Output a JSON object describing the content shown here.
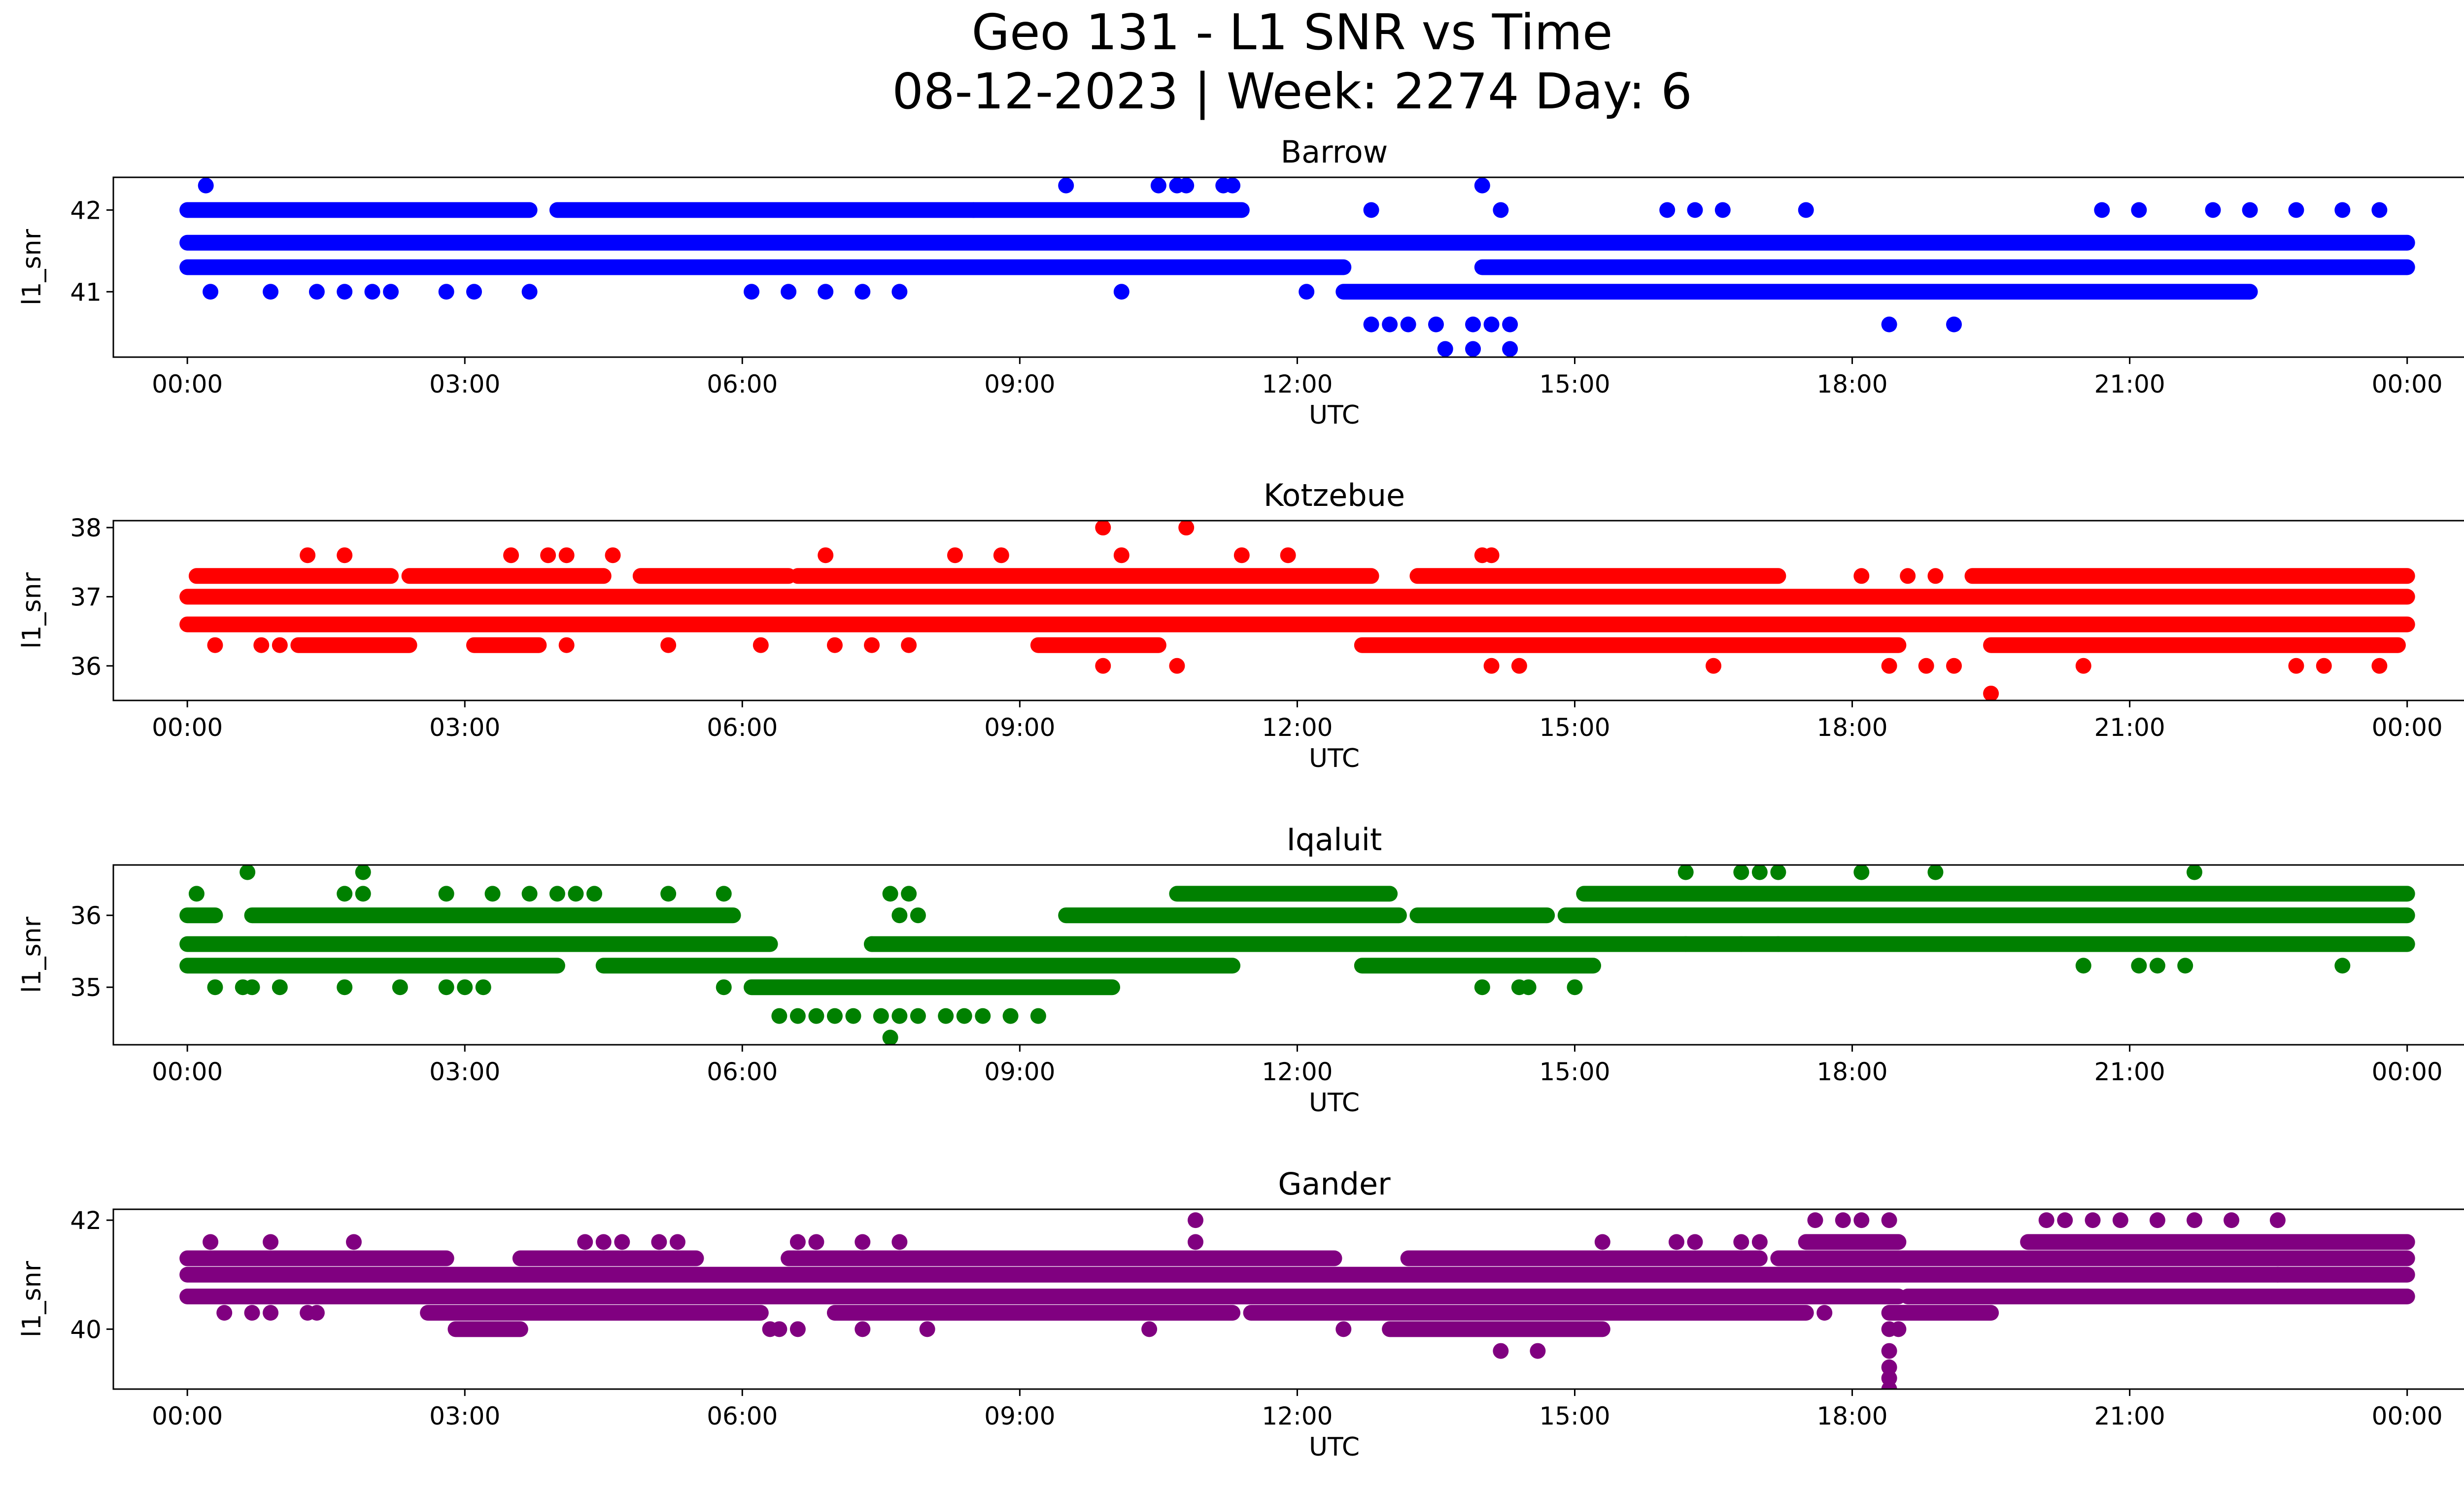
{
  "figure": {
    "title_line1": "Geo 131 - L1 SNR vs Time",
    "title_line2": "08-12-2023 | Week: 2274 Day: 6"
  },
  "chart_data": [
    {
      "type": "scatter",
      "title": "Barrow",
      "xlabel": "UTC",
      "ylabel": "l1_snr",
      "color": "#0000ff",
      "xlim": [
        -0.8,
        25.6
      ],
      "ylim": [
        40.2,
        42.4
      ],
      "xticks": [
        0,
        3,
        6,
        9,
        12,
        15,
        18,
        21,
        24
      ],
      "xtick_labels": [
        "00:00",
        "03:00",
        "06:00",
        "09:00",
        "12:00",
        "15:00",
        "18:00",
        "21:00",
        "00:00"
      ],
      "yticks": [
        41,
        42
      ],
      "ytick_labels": [
        "41",
        "42"
      ],
      "grid": false,
      "bands": [
        {
          "y": 41.6,
          "segments": [
            [
              0,
              24
            ]
          ]
        },
        {
          "y": 41.3,
          "segments": [
            [
              0,
              11.5
            ],
            [
              11.5,
              12.5
            ],
            [
              14.0,
              24
            ]
          ]
        },
        {
          "y": 42.0,
          "segments": [
            [
              0,
              3.7
            ],
            [
              4.0,
              8.5
            ],
            [
              8.5,
              11.4
            ]
          ]
        },
        {
          "y": 41.0,
          "segments": [
            [
              12.5,
              22.3
            ]
          ]
        }
      ],
      "points": [
        [
          0.2,
          42.3
        ],
        [
          9.5,
          42.3
        ],
        [
          10.5,
          42.3
        ],
        [
          10.7,
          42.3
        ],
        [
          10.8,
          42.3
        ],
        [
          11.2,
          42.3
        ],
        [
          11.3,
          42.3
        ],
        [
          14.0,
          42.3
        ],
        [
          0.25,
          41.0
        ],
        [
          0.9,
          41.0
        ],
        [
          1.4,
          41.0
        ],
        [
          1.7,
          41.0
        ],
        [
          2.0,
          41.0
        ],
        [
          2.2,
          41.0
        ],
        [
          2.8,
          41.0
        ],
        [
          3.1,
          41.0
        ],
        [
          3.7,
          41.0
        ],
        [
          6.1,
          41.0
        ],
        [
          6.5,
          41.0
        ],
        [
          6.9,
          41.0
        ],
        [
          7.3,
          41.0
        ],
        [
          7.7,
          41.0
        ],
        [
          10.1,
          41.0
        ],
        [
          12.1,
          41.0
        ],
        [
          12.8,
          40.6
        ],
        [
          13.0,
          40.6
        ],
        [
          13.2,
          40.6
        ],
        [
          13.5,
          40.6
        ],
        [
          13.9,
          40.6
        ],
        [
          14.1,
          40.6
        ],
        [
          14.3,
          40.6
        ],
        [
          18.4,
          40.6
        ],
        [
          19.1,
          40.6
        ],
        [
          13.6,
          40.3
        ],
        [
          13.9,
          40.3
        ],
        [
          14.3,
          40.3
        ],
        [
          12.8,
          42.0
        ],
        [
          14.2,
          42.0
        ],
        [
          16.0,
          42.0
        ],
        [
          16.3,
          42.0
        ],
        [
          16.6,
          42.0
        ],
        [
          17.5,
          42.0
        ],
        [
          20.7,
          42.0
        ],
        [
          21.1,
          42.0
        ],
        [
          21.9,
          42.0
        ],
        [
          22.3,
          42.0
        ],
        [
          22.8,
          42.0
        ],
        [
          23.3,
          42.0
        ],
        [
          23.7,
          42.0
        ]
      ]
    },
    {
      "type": "scatter",
      "title": "Kotzebue",
      "xlabel": "UTC",
      "ylabel": "l1_snr",
      "color": "#ff0000",
      "xlim": [
        -0.8,
        25.6
      ],
      "ylim": [
        35.5,
        38.1
      ],
      "xticks": [
        0,
        3,
        6,
        9,
        12,
        15,
        18,
        21,
        24
      ],
      "xtick_labels": [
        "00:00",
        "03:00",
        "06:00",
        "09:00",
        "12:00",
        "15:00",
        "18:00",
        "21:00",
        "00:00"
      ],
      "yticks": [
        36,
        37,
        38
      ],
      "ytick_labels": [
        "36",
        "37",
        "38"
      ],
      "grid": false,
      "bands": [
        {
          "y": 37.0,
          "segments": [
            [
              0,
              24
            ]
          ]
        },
        {
          "y": 36.6,
          "segments": [
            [
              0,
              24
            ]
          ]
        },
        {
          "y": 37.3,
          "segments": [
            [
              0.1,
              2.2
            ],
            [
              2.4,
              4.5
            ],
            [
              4.9,
              6.5
            ],
            [
              6.6,
              12.8
            ],
            [
              13.3,
              17.2
            ],
            [
              19.3,
              24
            ]
          ]
        },
        {
          "y": 36.3,
          "segments": [
            [
              1.2,
              2.4
            ],
            [
              3.1,
              3.8
            ],
            [
              9.2,
              10.5
            ],
            [
              12.7,
              18.5
            ],
            [
              19.5,
              23.9
            ]
          ]
        }
      ],
      "points": [
        [
          9.9,
          38.0
        ],
        [
          10.8,
          38.0
        ],
        [
          1.3,
          37.6
        ],
        [
          1.7,
          37.6
        ],
        [
          3.5,
          37.6
        ],
        [
          3.9,
          37.6
        ],
        [
          4.1,
          37.6
        ],
        [
          4.6,
          37.6
        ],
        [
          6.9,
          37.6
        ],
        [
          8.3,
          37.6
        ],
        [
          8.8,
          37.6
        ],
        [
          10.1,
          37.6
        ],
        [
          11.4,
          37.6
        ],
        [
          11.9,
          37.6
        ],
        [
          14.0,
          37.6
        ],
        [
          14.1,
          37.6
        ],
        [
          0.3,
          36.3
        ],
        [
          0.8,
          36.3
        ],
        [
          1.0,
          36.3
        ],
        [
          4.1,
          36.3
        ],
        [
          5.2,
          36.3
        ],
        [
          6.2,
          36.3
        ],
        [
          7.0,
          36.3
        ],
        [
          7.4,
          36.3
        ],
        [
          7.8,
          36.3
        ],
        [
          9.9,
          36.0
        ],
        [
          10.7,
          36.0
        ],
        [
          14.1,
          36.0
        ],
        [
          14.4,
          36.0
        ],
        [
          16.5,
          36.0
        ],
        [
          18.4,
          36.0
        ],
        [
          18.8,
          36.0
        ],
        [
          19.1,
          36.0
        ],
        [
          20.5,
          36.0
        ],
        [
          22.8,
          36.0
        ],
        [
          23.1,
          36.0
        ],
        [
          23.7,
          36.0
        ],
        [
          19.5,
          35.6
        ],
        [
          18.1,
          37.3
        ],
        [
          18.6,
          37.3
        ],
        [
          18.9,
          37.3
        ]
      ]
    },
    {
      "type": "scatter",
      "title": "Iqaluit",
      "xlabel": "UTC",
      "ylabel": "l1_snr",
      "color": "#008000",
      "xlim": [
        -0.8,
        25.6
      ],
      "ylim": [
        34.2,
        36.7
      ],
      "xticks": [
        0,
        3,
        6,
        9,
        12,
        15,
        18,
        21,
        24
      ],
      "xtick_labels": [
        "00:00",
        "03:00",
        "06:00",
        "09:00",
        "12:00",
        "15:00",
        "18:00",
        "21:00",
        "00:00"
      ],
      "yticks": [
        35,
        36
      ],
      "ytick_labels": [
        "35",
        "36"
      ],
      "grid": false,
      "bands": [
        {
          "y": 35.6,
          "segments": [
            [
              0,
              6.3
            ],
            [
              7.4,
              24
            ]
          ]
        },
        {
          "y": 35.3,
          "segments": [
            [
              0,
              4.0
            ],
            [
              4.5,
              11.3
            ],
            [
              12.7,
              15.2
            ]
          ]
        },
        {
          "y": 36.0,
          "segments": [
            [
              0,
              0.3
            ],
            [
              0.7,
              5.9
            ],
            [
              9.5,
              13.1
            ],
            [
              13.3,
              14.7
            ],
            [
              14.9,
              24
            ]
          ]
        },
        {
          "y": 36.3,
          "segments": [
            [
              10.7,
              13.0
            ],
            [
              15.1,
              24
            ]
          ]
        },
        {
          "y": 35.0,
          "segments": [
            [
              6.1,
              10.0
            ]
          ]
        }
      ],
      "points": [
        [
          0.1,
          36.3
        ],
        [
          1.7,
          36.3
        ],
        [
          1.9,
          36.3
        ],
        [
          2.8,
          36.3
        ],
        [
          3.3,
          36.3
        ],
        [
          3.7,
          36.3
        ],
        [
          4.0,
          36.3
        ],
        [
          4.2,
          36.3
        ],
        [
          4.4,
          36.3
        ],
        [
          5.2,
          36.3
        ],
        [
          5.8,
          36.3
        ],
        [
          0.65,
          36.6
        ],
        [
          1.9,
          36.6
        ],
        [
          16.2,
          36.6
        ],
        [
          16.8,
          36.6
        ],
        [
          17.0,
          36.6
        ],
        [
          17.2,
          36.6
        ],
        [
          18.1,
          36.6
        ],
        [
          18.9,
          36.6
        ],
        [
          21.7,
          36.6
        ],
        [
          0.3,
          35.0
        ],
        [
          0.6,
          35.0
        ],
        [
          0.7,
          35.0
        ],
        [
          1.0,
          35.0
        ],
        [
          1.7,
          35.0
        ],
        [
          2.3,
          35.0
        ],
        [
          2.8,
          35.0
        ],
        [
          3.0,
          35.0
        ],
        [
          3.2,
          35.0
        ],
        [
          5.8,
          35.0
        ],
        [
          14.0,
          35.0
        ],
        [
          14.4,
          35.0
        ],
        [
          14.5,
          35.0
        ],
        [
          15.0,
          35.0
        ],
        [
          6.4,
          34.6
        ],
        [
          6.6,
          34.6
        ],
        [
          6.8,
          34.6
        ],
        [
          7.0,
          34.6
        ],
        [
          7.2,
          34.6
        ],
        [
          7.5,
          34.6
        ],
        [
          7.7,
          34.6
        ],
        [
          7.9,
          34.6
        ],
        [
          8.2,
          34.6
        ],
        [
          8.4,
          34.6
        ],
        [
          8.6,
          34.6
        ],
        [
          8.9,
          34.6
        ],
        [
          9.2,
          34.6
        ],
        [
          7.6,
          34.3
        ],
        [
          7.6,
          36.3
        ],
        [
          7.8,
          36.3
        ],
        [
          7.7,
          36.0
        ],
        [
          7.9,
          36.0
        ],
        [
          7.4,
          35.6
        ],
        [
          20.5,
          35.3
        ],
        [
          21.1,
          35.3
        ],
        [
          21.3,
          35.3
        ],
        [
          21.6,
          35.3
        ],
        [
          23.3,
          35.3
        ],
        [
          16.2,
          35.6
        ],
        [
          16.8,
          35.6
        ],
        [
          17.2,
          35.6
        ]
      ]
    },
    {
      "type": "scatter",
      "title": "Gander",
      "xlabel": "UTC",
      "ylabel": "l1_snr",
      "color": "#800080",
      "xlim": [
        -0.8,
        25.6
      ],
      "ylim": [
        38.9,
        42.2
      ],
      "xticks": [
        0,
        3,
        6,
        9,
        12,
        15,
        18,
        21,
        24
      ],
      "xtick_labels": [
        "00:00",
        "03:00",
        "06:00",
        "09:00",
        "12:00",
        "15:00",
        "18:00",
        "21:00",
        "00:00"
      ],
      "yticks": [
        40,
        42
      ],
      "ytick_labels": [
        "40",
        "42"
      ],
      "grid": false,
      "bands": [
        {
          "y": 41.0,
          "segments": [
            [
              0,
              24
            ]
          ]
        },
        {
          "y": 40.6,
          "segments": [
            [
              0,
              18.5
            ],
            [
              18.6,
              24
            ]
          ]
        },
        {
          "y": 41.3,
          "segments": [
            [
              0,
              2.8
            ],
            [
              3.6,
              5.5
            ],
            [
              6.5,
              12.4
            ],
            [
              13.2,
              17.0
            ],
            [
              17.2,
              24
            ]
          ]
        },
        {
          "y": 40.3,
          "segments": [
            [
              2.6,
              6.2
            ],
            [
              7.0,
              11.3
            ],
            [
              11.5,
              17.5
            ],
            [
              18.4,
              19.5
            ]
          ]
        },
        {
          "y": 41.6,
          "segments": [
            [
              17.5,
              18.5
            ],
            [
              19.9,
              24
            ]
          ]
        },
        {
          "y": 40.0,
          "segments": [
            [
              2.9,
              3.6
            ],
            [
              13.0,
              15.3
            ]
          ]
        }
      ],
      "points": [
        [
          0.25,
          41.6
        ],
        [
          0.9,
          41.6
        ],
        [
          1.8,
          41.6
        ],
        [
          4.3,
          41.6
        ],
        [
          4.5,
          41.6
        ],
        [
          4.7,
          41.6
        ],
        [
          5.1,
          41.6
        ],
        [
          5.3,
          41.6
        ],
        [
          6.6,
          41.6
        ],
        [
          6.8,
          41.6
        ],
        [
          7.3,
          41.6
        ],
        [
          7.7,
          41.6
        ],
        [
          10.9,
          41.6
        ],
        [
          15.3,
          41.6
        ],
        [
          16.1,
          41.6
        ],
        [
          16.3,
          41.6
        ],
        [
          16.8,
          41.6
        ],
        [
          17.0,
          41.6
        ],
        [
          10.9,
          42.0
        ],
        [
          17.6,
          42.0
        ],
        [
          17.9,
          42.0
        ],
        [
          18.1,
          42.0
        ],
        [
          18.4,
          42.0
        ],
        [
          20.1,
          42.0
        ],
        [
          20.3,
          42.0
        ],
        [
          20.6,
          42.0
        ],
        [
          20.9,
          42.0
        ],
        [
          21.3,
          42.0
        ],
        [
          21.7,
          42.0
        ],
        [
          22.1,
          42.0
        ],
        [
          22.6,
          42.0
        ],
        [
          0.4,
          40.3
        ],
        [
          0.7,
          40.3
        ],
        [
          0.9,
          40.3
        ],
        [
          1.3,
          40.3
        ],
        [
          1.4,
          40.3
        ],
        [
          6.3,
          40.0
        ],
        [
          6.4,
          40.0
        ],
        [
          6.6,
          40.0
        ],
        [
          7.3,
          40.0
        ],
        [
          8.0,
          40.0
        ],
        [
          10.4,
          40.0
        ],
        [
          12.5,
          40.0
        ],
        [
          14.2,
          39.6
        ],
        [
          14.6,
          39.6
        ],
        [
          17.7,
          40.3
        ],
        [
          18.4,
          40.0
        ],
        [
          18.5,
          40.0
        ],
        [
          18.4,
          39.6
        ],
        [
          18.4,
          39.3
        ],
        [
          18.4,
          39.1
        ],
        [
          18.4,
          38.9
        ],
        [
          20.3,
          40.6
        ],
        [
          20.6,
          40.6
        ],
        [
          21.1,
          40.6
        ],
        [
          21.9,
          40.6
        ],
        [
          22.6,
          41.0
        ],
        [
          23.0,
          40.6
        ],
        [
          23.3,
          40.6
        ]
      ]
    }
  ]
}
